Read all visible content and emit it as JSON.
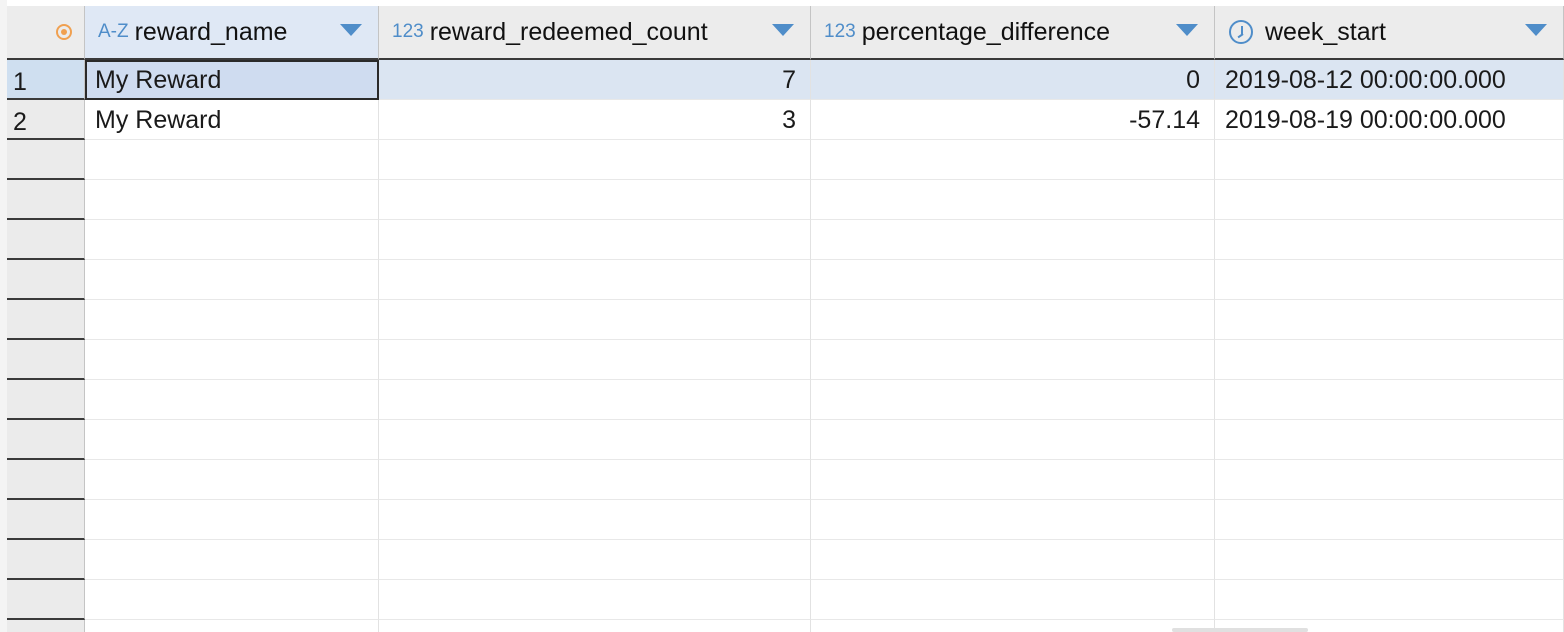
{
  "columns": [
    {
      "type_icon": "A-Z",
      "label": "reward_name"
    },
    {
      "type_icon": "123",
      "label": "reward_redeemed_count"
    },
    {
      "type_icon": "123",
      "label": "percentage_difference"
    },
    {
      "type_icon": "clock-icon",
      "label": "week_start"
    }
  ],
  "rows": [
    {
      "num": "1",
      "reward_name": "My Reward",
      "reward_redeemed_count": "7",
      "percentage_difference": "0",
      "week_start": "2019-08-12 00:00:00.000"
    },
    {
      "num": "2",
      "reward_name": "My Reward",
      "reward_redeemed_count": "3",
      "percentage_difference": "-57.14",
      "week_start": "2019-08-19 00:00:00.000"
    }
  ],
  "colors": {
    "accent": "#4f8dc9",
    "corner_icon": "#f0a050",
    "selection": "#dbe5f2"
  }
}
